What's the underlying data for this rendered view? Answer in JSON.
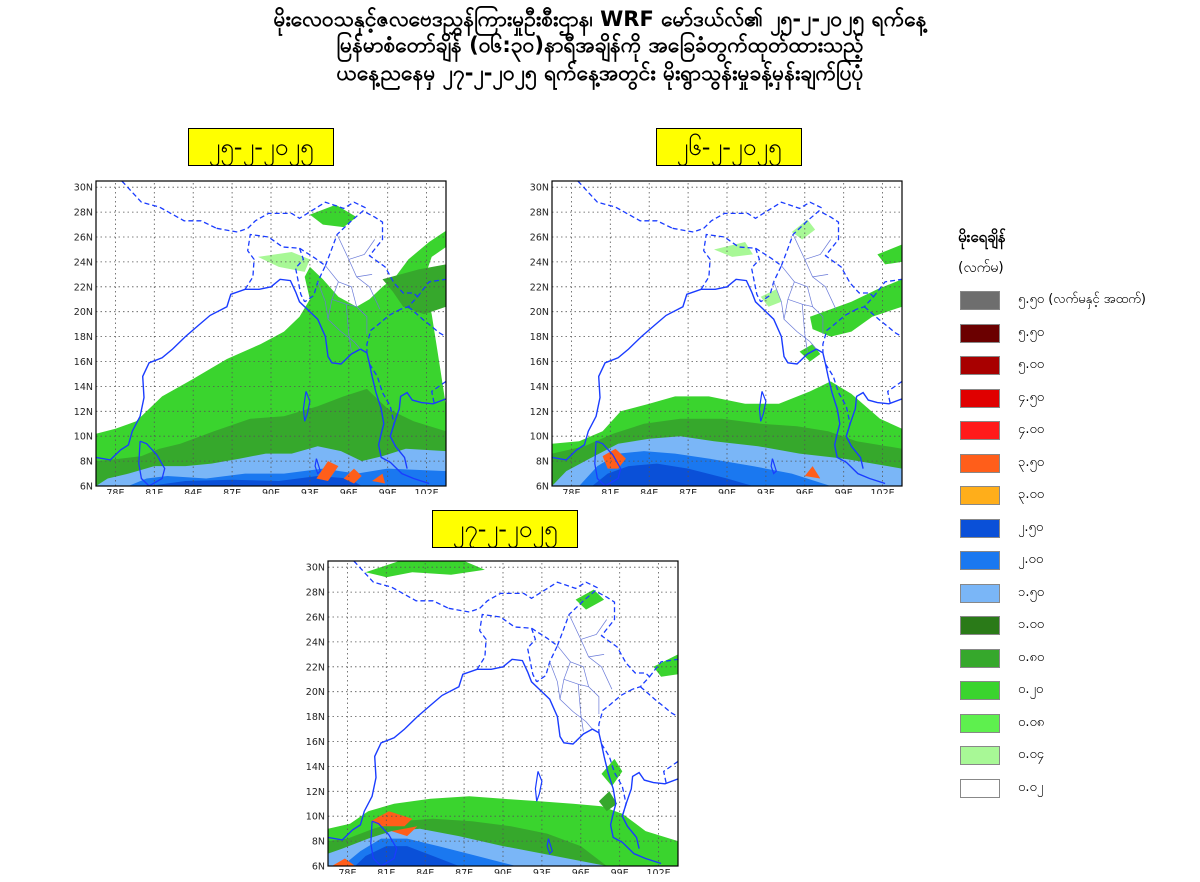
{
  "header": {
    "line1": "မိုးလေဝသနှင့်ဇလဗေဒညွှန်ကြားမှုဦးစီးဌာန၊ WRF မော်ဒယ်လ်၏ ၂၅-၂-၂၀၂၅ ရက်နေ့",
    "line2": "မြန်မာစံတော်ချိန် (၀၆:၃၀)နာရီအချိန်ကို အခြေခံတွက်ထုတ်ထားသည့်",
    "line3": "ယနေ့ညနေမှ ၂၇-၂-၂၀၂၅ ရက်နေ့အတွင်း မိုးရွာသွန်းမှုခန့်မှန်းချက်ပြပုံ"
  },
  "maps": [
    {
      "date": "၂၅-၂-၂၀၂၅"
    },
    {
      "date": "၂၆-၂-၂၀၂၅"
    },
    {
      "date": "၂၇-၂-၂၀၂၅"
    }
  ],
  "axes": {
    "lat_labels": [
      "30N",
      "28N",
      "26N",
      "24N",
      "22N",
      "20N",
      "18N",
      "16N",
      "14N",
      "12N",
      "10N",
      "8N",
      "6N"
    ],
    "lon_labels": [
      "78E",
      "81E",
      "84E",
      "87E",
      "90E",
      "93E",
      "96E",
      "99E",
      "102E"
    ]
  },
  "legend": {
    "title": "မိုးရေချိန်",
    "unit": "(လက်မ)",
    "items": [
      {
        "label": "၅.၅၀ (လက်မနှင့် အထက်)",
        "color": "#6e6e6e"
      },
      {
        "label": "၅.၅၀",
        "color": "#6b0000"
      },
      {
        "label": "၅.၀၀",
        "color": "#a80000"
      },
      {
        "label": "၄.၅၀",
        "color": "#e00000"
      },
      {
        "label": "၄.၀၀",
        "color": "#ff1a1a"
      },
      {
        "label": "၃.၅၀",
        "color": "#ff5e1a"
      },
      {
        "label": "၃.၀၀",
        "color": "#ffae1a"
      },
      {
        "label": "၂.၅၀",
        "color": "#0a50d8"
      },
      {
        "label": "၂.၀၀",
        "color": "#1a78f0"
      },
      {
        "label": "၁.၅၀",
        "color": "#7ab6f7"
      },
      {
        "label": "၁.၀၀",
        "color": "#2a7a18"
      },
      {
        "label": "၀.၈၀",
        "color": "#36a82c"
      },
      {
        "label": "၀.၂၀",
        "color": "#3ad42e"
      },
      {
        "label": "၀.၀၈",
        "color": "#5ef04e"
      },
      {
        "label": "၀.၀၄",
        "color": "#a8f896"
      },
      {
        "label": "၀.၀၂",
        "color": "#ffffff"
      }
    ]
  }
}
